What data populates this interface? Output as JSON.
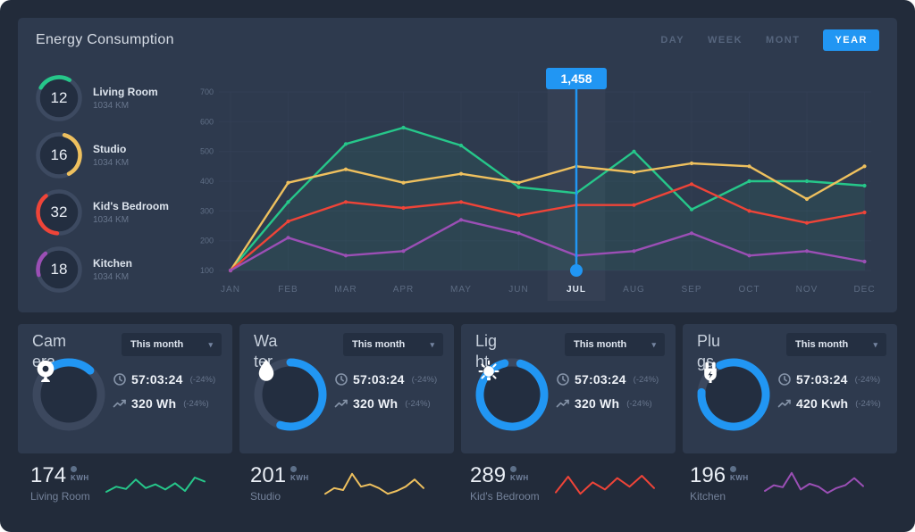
{
  "header": {
    "title": "Energy Consumption",
    "tabs": [
      {
        "label": "DAY",
        "active": false
      },
      {
        "label": "WEEK",
        "active": false
      },
      {
        "label": "MONT",
        "active": false
      },
      {
        "label": "YEAR",
        "active": true
      }
    ]
  },
  "gauges": [
    {
      "value": "12",
      "label": "Living Room",
      "sub": "1034 KM",
      "color": "#26c78a",
      "fraction": 0.25,
      "start": -60
    },
    {
      "value": "16",
      "label": "Studio",
      "sub": "1034 KM",
      "color": "#eec05e",
      "fraction": 0.38,
      "start": 15
    },
    {
      "value": "32",
      "label": "Kid's Bedroom",
      "sub": "1034 KM",
      "color": "#ef4438",
      "fraction": 0.38,
      "start": -175
    },
    {
      "value": "18",
      "label": "Kitchen",
      "sub": "1034 KM",
      "color": "#9b4fb5",
      "fraction": 0.18,
      "start": -105
    }
  ],
  "chart_data": {
    "type": "line",
    "x": [
      "JAN",
      "FEB",
      "MAR",
      "APR",
      "MAY",
      "JUN",
      "JUL",
      "AUG",
      "SEP",
      "OCT",
      "NOV",
      "DEC"
    ],
    "series": [
      {
        "name": "Living Room",
        "color": "#26c78a",
        "values": [
          100,
          330,
          525,
          580,
          520,
          380,
          360,
          500,
          305,
          400,
          400,
          385
        ]
      },
      {
        "name": "Studio",
        "color": "#eec05e",
        "values": [
          100,
          395,
          440,
          395,
          425,
          395,
          450,
          430,
          460,
          450,
          340,
          450
        ]
      },
      {
        "name": "Kid's Bedroom",
        "color": "#ef4438",
        "values": [
          100,
          265,
          330,
          310,
          330,
          285,
          320,
          320,
          390,
          300,
          260,
          295
        ]
      },
      {
        "name": "Kitchen",
        "color": "#9b4fb5",
        "values": [
          100,
          210,
          150,
          165,
          270,
          225,
          150,
          165,
          225,
          150,
          165,
          130
        ]
      }
    ],
    "ylim": [
      100,
      700
    ],
    "yticks": [
      100,
      200,
      300,
      400,
      500,
      600,
      700
    ],
    "grid": true,
    "legend": "none",
    "selected_x": "JUL",
    "tooltip": {
      "label": "1,458",
      "x": "JUL"
    }
  },
  "cards": [
    {
      "title": "Cam\nera",
      "dropdown": "This month",
      "icon": "camera-icon",
      "progress": 0.24,
      "start": -45,
      "stats": [
        {
          "value": "57:03:24",
          "delta": "(-24%)"
        },
        {
          "value": "320 Wh",
          "delta": "(-24%)"
        }
      ]
    },
    {
      "title": "Wa\nter",
      "dropdown": "This month",
      "icon": "water-drop-icon",
      "progress": 0.55,
      "start": 0,
      "stats": [
        {
          "value": "57:03:24",
          "delta": "(-24%)"
        },
        {
          "value": "320 Wh",
          "delta": "(-24%)"
        }
      ]
    },
    {
      "title": "Lig\nht",
      "dropdown": "This month",
      "icon": "light-bulb-icon",
      "progress": 0.92,
      "start": 15,
      "stats": [
        {
          "value": "57:03:24",
          "delta": "(-24%)"
        },
        {
          "value": "320 Wh",
          "delta": "(-24%)"
        }
      ]
    },
    {
      "title": "Plu\ngs",
      "dropdown": "This month",
      "icon": "plug-icon",
      "progress": 0.83,
      "start": -25,
      "stats": [
        {
          "value": "57:03:24",
          "delta": "(-24%)"
        },
        {
          "value": "420 Kwh",
          "delta": "(-24%)"
        }
      ]
    }
  ],
  "footer": [
    {
      "value": "174",
      "unit": "KWH",
      "label": "Living Room",
      "color": "#26c78a",
      "spark": [
        22,
        40,
        32,
        65,
        35,
        48,
        30,
        52,
        25,
        72,
        58
      ]
    },
    {
      "value": "201",
      "unit": "KWH",
      "label": "Studio",
      "color": "#eec05e",
      "spark": [
        15,
        35,
        28,
        85,
        40,
        48,
        35,
        15,
        25,
        40,
        65,
        35
      ]
    },
    {
      "value": "289",
      "unit": "KWH",
      "label": "Kid's Bedroom",
      "color": "#ef4438",
      "spark": [
        20,
        75,
        15,
        55,
        30,
        70,
        40,
        78,
        35
      ]
    },
    {
      "value": "196",
      "unit": "KWH",
      "label": "Kitchen",
      "color": "#9b4fb5",
      "spark": [
        25,
        45,
        38,
        88,
        30,
        50,
        40,
        18,
        35,
        45,
        70,
        42
      ]
    }
  ],
  "colors": {
    "accent": "#2196f3",
    "panel": "#2e3a4e",
    "background": "#222b3a",
    "green": "#26c78a",
    "yellow": "#eec05e",
    "red": "#ef4438",
    "purple": "#9b4fb5"
  }
}
